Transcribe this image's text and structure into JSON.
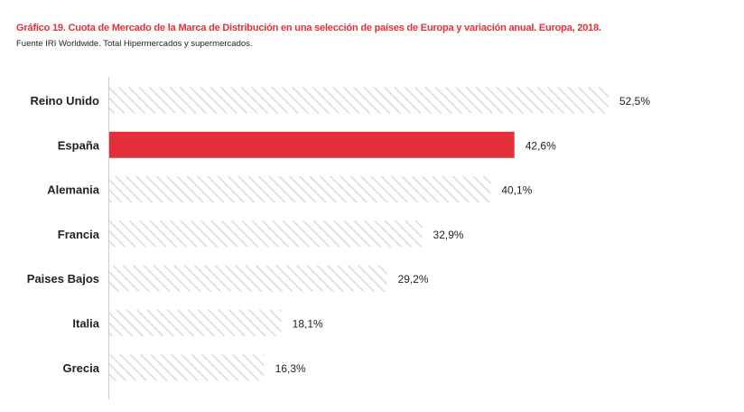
{
  "title": "Gráfico 19. Cuota de Mercado de la Marca de Distribución en una selección de países de Europa y variación anual. Europa, 2018.",
  "subtitle": "Fuente IRI Worldwide. Total Hipermercados y supermercados.",
  "chart_data": {
    "type": "bar",
    "orientation": "horizontal",
    "categories": [
      "Reino Unido",
      "España",
      "Alemania",
      "Francia",
      "Paises Bajos",
      "Italia",
      "Grecia"
    ],
    "values": [
      52.5,
      42.6,
      40.1,
      32.9,
      29.2,
      18.1,
      16.3
    ],
    "value_labels": [
      "52,5%",
      "42,6%",
      "40,1%",
      "32,9%",
      "29,2%",
      "18,1%",
      "16,3%"
    ],
    "highlight": "España",
    "colors": {
      "highlight": "#e42f3b",
      "hatch": "#d9d9d9",
      "axis": "#cccccc"
    },
    "xlim": [
      0,
      52.5
    ],
    "grid": false
  }
}
